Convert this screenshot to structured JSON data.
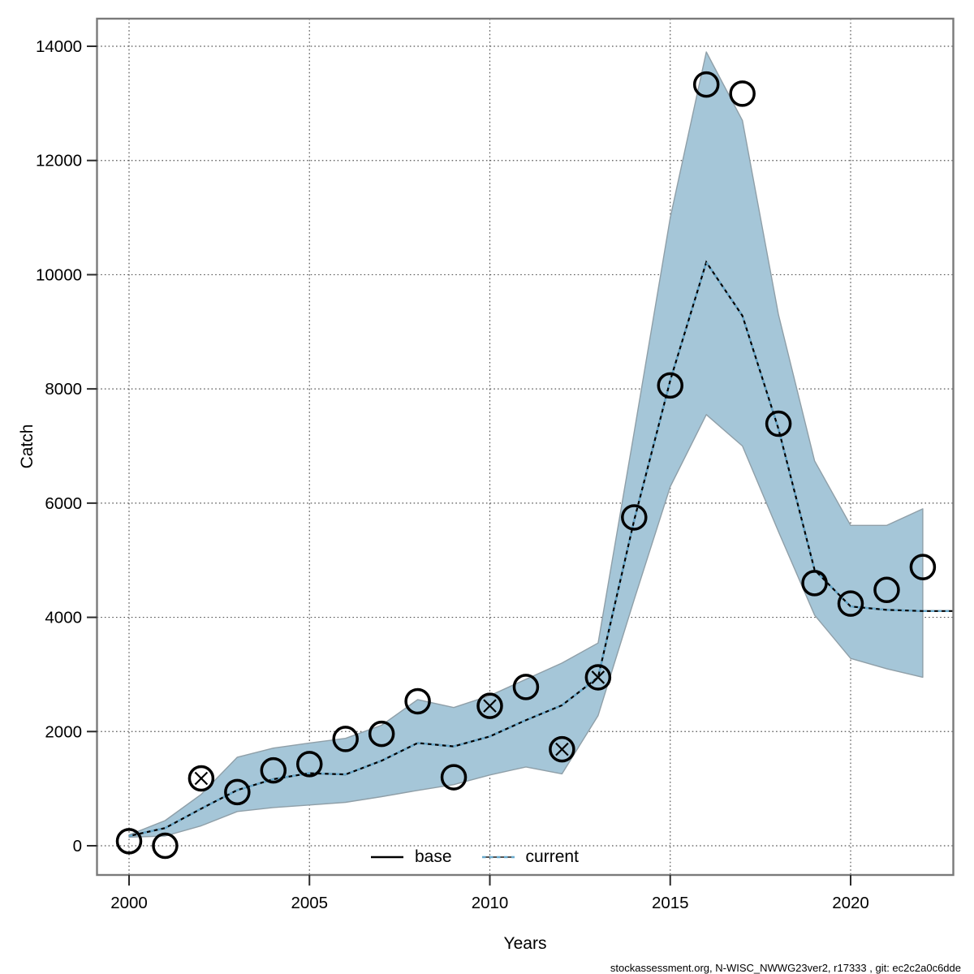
{
  "footer_attribution": "stockassessment.org, N-WISC_NWWG23ver2, r17333 , git: ec2c2a0c6dde",
  "chart_data": {
    "type": "line",
    "title": "",
    "xlabel": "Years",
    "ylabel": "Catch",
    "xlim": [
      1999.1,
      2022.85
    ],
    "ylim": [
      -510,
      14480
    ],
    "grid": true,
    "x_ticks": [
      2000,
      2005,
      2010,
      2015,
      2020
    ],
    "y_ticks": [
      0,
      2000,
      4000,
      6000,
      8000,
      10000,
      12000,
      14000
    ],
    "legend_position": "bottom-center-inside",
    "legend": [
      {
        "label": "base",
        "style": "solid",
        "color": "#000000"
      },
      {
        "label": "current",
        "style": "dotted",
        "color": "#69aacd"
      }
    ],
    "band_color": "#a5c6d8",
    "band_edge_color": "#8f9fa8",
    "observation_marker": "open-circle",
    "observed_points": [
      {
        "year": 2000,
        "value": 80,
        "crossed": false
      },
      {
        "year": 2001,
        "value": 0,
        "crossed": false
      },
      {
        "year": 2002,
        "value": 1180,
        "crossed": true
      },
      {
        "year": 2003,
        "value": 940,
        "crossed": false
      },
      {
        "year": 2004,
        "value": 1320,
        "crossed": false
      },
      {
        "year": 2005,
        "value": 1430,
        "crossed": false
      },
      {
        "year": 2006,
        "value": 1870,
        "crossed": false
      },
      {
        "year": 2007,
        "value": 1960,
        "crossed": false
      },
      {
        "year": 2008,
        "value": 2530,
        "crossed": false
      },
      {
        "year": 2009,
        "value": 1200,
        "crossed": false
      },
      {
        "year": 2010,
        "value": 2450,
        "crossed": true
      },
      {
        "year": 2011,
        "value": 2780,
        "crossed": false
      },
      {
        "year": 2012,
        "value": 1690,
        "crossed": true
      },
      {
        "year": 2013,
        "value": 2950,
        "crossed": true
      },
      {
        "year": 2014,
        "value": 5750,
        "crossed": false
      },
      {
        "year": 2015,
        "value": 8060,
        "crossed": false
      },
      {
        "year": 2016,
        "value": 13330,
        "crossed": false
      },
      {
        "year": 2017,
        "value": 13170,
        "crossed": false
      },
      {
        "year": 2018,
        "value": 7390,
        "crossed": false
      },
      {
        "year": 2019,
        "value": 4600,
        "crossed": false
      },
      {
        "year": 2020,
        "value": 4240,
        "crossed": false
      },
      {
        "year": 2021,
        "value": 4480,
        "crossed": false
      },
      {
        "year": 2022,
        "value": 4880,
        "crossed": false
      }
    ],
    "current_line": [
      [
        2000,
        170
      ],
      [
        2001,
        310
      ],
      [
        2002,
        650
      ],
      [
        2003,
        975
      ],
      [
        2004,
        1165
      ],
      [
        2005,
        1270
      ],
      [
        2006,
        1250
      ],
      [
        2007,
        1490
      ],
      [
        2008,
        1800
      ],
      [
        2009,
        1740
      ],
      [
        2010,
        1915
      ],
      [
        2011,
        2200
      ],
      [
        2012,
        2460
      ],
      [
        2013,
        2950
      ],
      [
        2014,
        5700
      ],
      [
        2015,
        8150
      ],
      [
        2016,
        10220
      ],
      [
        2017,
        9280
      ],
      [
        2018,
        7300
      ],
      [
        2019,
        4830
      ],
      [
        2020,
        4190
      ],
      [
        2021,
        4130
      ],
      [
        2022,
        4110
      ],
      [
        2022.85,
        4110
      ]
    ],
    "base_line_note": "base run coincides with current run (black solid line hidden beneath dotted line)",
    "confidence_band": [
      {
        "year": 2000,
        "lower": 150,
        "upper": 190
      },
      {
        "year": 2001,
        "lower": 170,
        "upper": 440
      },
      {
        "year": 2002,
        "lower": 350,
        "upper": 900
      },
      {
        "year": 2003,
        "lower": 600,
        "upper": 1550
      },
      {
        "year": 2004,
        "lower": 670,
        "upper": 1710
      },
      {
        "year": 2005,
        "lower": 714,
        "upper": 1800
      },
      {
        "year": 2006,
        "lower": 760,
        "upper": 1880
      },
      {
        "year": 2007,
        "lower": 860,
        "upper": 2110
      },
      {
        "year": 2008,
        "lower": 970,
        "upper": 2560
      },
      {
        "year": 2009,
        "lower": 1070,
        "upper": 2420
      },
      {
        "year": 2010,
        "lower": 1240,
        "upper": 2630
      },
      {
        "year": 2011,
        "lower": 1380,
        "upper": 2915
      },
      {
        "year": 2012,
        "lower": 1260,
        "upper": 3200
      },
      {
        "year": 2013,
        "lower": 2280,
        "upper": 3550
      },
      {
        "year": 2014,
        "lower": 4310,
        "upper": 7240
      },
      {
        "year": 2015,
        "lower": 6290,
        "upper": 11000
      },
      {
        "year": 2016,
        "lower": 7550,
        "upper": 13900
      },
      {
        "year": 2017,
        "lower": 7000,
        "upper": 12700
      },
      {
        "year": 2018,
        "lower": 5500,
        "upper": 9300
      },
      {
        "year": 2019,
        "lower": 4040,
        "upper": 6740
      },
      {
        "year": 2020,
        "lower": 3280,
        "upper": 5610
      },
      {
        "year": 2021,
        "lower": 3100,
        "upper": 5610
      },
      {
        "year": 2022,
        "lower": 2950,
        "upper": 5900
      }
    ]
  }
}
